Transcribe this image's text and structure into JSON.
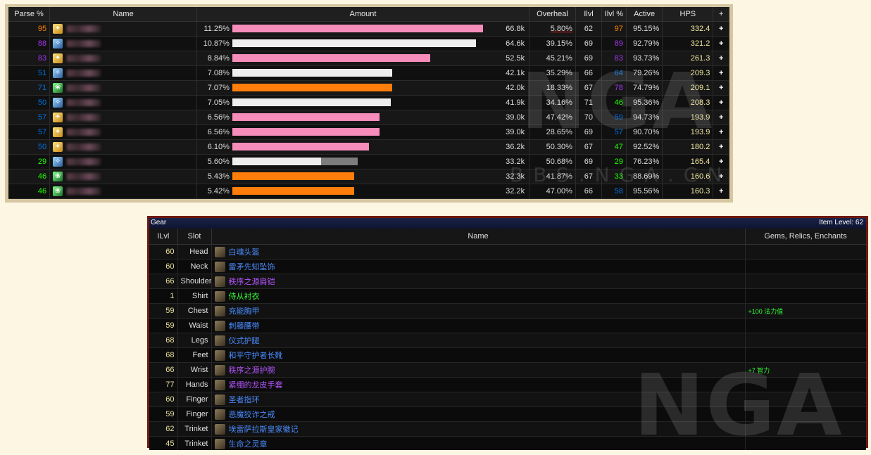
{
  "ranking": {
    "headers": [
      "Parse %",
      "Name",
      "Amount",
      "Overheal",
      "Ilvl",
      "Ilvl %",
      "Active",
      "HPS",
      "+"
    ],
    "rows": [
      {
        "parse": "95",
        "parse_color": "#ff8000",
        "spec": "holy-paladin-icon",
        "pct": "11.25%",
        "bar_pct": 99,
        "overheal_pct": 0,
        "bar_color": "#f58cba",
        "amount": "66.8k",
        "overheal": "5.80%",
        "ilvl": "62",
        "ilvl_pct": "97",
        "ilvl_pct_color": "#ff8000",
        "active": "95.15%",
        "hps": "332.4",
        "plus": "+"
      },
      {
        "parse": "88",
        "parse_color": "#a335ee",
        "spec": "holy-priest-icon",
        "pct": "10.87%",
        "bar_pct": 96,
        "overheal_pct": 0,
        "bar_color": "#eeeeee",
        "amount": "64.6k",
        "overheal": "39.15%",
        "ilvl": "69",
        "ilvl_pct": "89",
        "ilvl_pct_color": "#a335ee",
        "active": "92.79%",
        "hps": "321.2",
        "plus": "+"
      },
      {
        "parse": "83",
        "parse_color": "#a335ee",
        "spec": "holy-paladin-icon",
        "pct": "8.84%",
        "bar_pct": 78,
        "overheal_pct": 0,
        "bar_color": "#f58cba",
        "amount": "52.5k",
        "overheal": "45.21%",
        "ilvl": "69",
        "ilvl_pct": "83",
        "ilvl_pct_color": "#a335ee",
        "active": "93.73%",
        "hps": "261.3",
        "plus": "+"
      },
      {
        "parse": "51",
        "parse_color": "#0070dd",
        "spec": "holy-priest-icon",
        "pct": "7.08%",
        "bar_pct": 63,
        "overheal_pct": 0,
        "bar_color": "#eeeeee",
        "amount": "42.1k",
        "overheal": "35.29%",
        "ilvl": "66",
        "ilvl_pct": "64",
        "ilvl_pct_color": "#0070dd",
        "active": "79.26%",
        "hps": "209.3",
        "plus": "+"
      },
      {
        "parse": "71",
        "parse_color": "#0070dd",
        "spec": "restoration-druid-icon",
        "pct": "7.07%",
        "bar_pct": 63,
        "overheal_pct": 0,
        "bar_color": "#ff7d0a",
        "amount": "42.0k",
        "overheal": "18.33%",
        "ilvl": "67",
        "ilvl_pct": "78",
        "ilvl_pct_color": "#a335ee",
        "active": "74.79%",
        "hps": "209.1",
        "plus": "+"
      },
      {
        "parse": "50",
        "parse_color": "#0070dd",
        "spec": "holy-priest-icon",
        "pct": "7.05%",
        "bar_pct": 62.5,
        "overheal_pct": 0,
        "bar_color": "#eeeeee",
        "amount": "41.9k",
        "overheal": "34.16%",
        "ilvl": "71",
        "ilvl_pct": "46",
        "ilvl_pct_color": "#1eff00",
        "active": "95.36%",
        "hps": "208.3",
        "plus": "+"
      },
      {
        "parse": "57",
        "parse_color": "#0070dd",
        "spec": "holy-paladin-icon",
        "pct": "6.56%",
        "bar_pct": 58,
        "overheal_pct": 0,
        "bar_color": "#f58cba",
        "amount": "39.0k",
        "overheal": "47.42%",
        "ilvl": "70",
        "ilvl_pct": "59",
        "ilvl_pct_color": "#0070dd",
        "active": "94.73%",
        "hps": "193.9",
        "plus": "+"
      },
      {
        "parse": "57",
        "parse_color": "#0070dd",
        "spec": "holy-paladin-icon",
        "pct": "6.56%",
        "bar_pct": 58,
        "overheal_pct": 0,
        "bar_color": "#f58cba",
        "amount": "39.0k",
        "overheal": "28.65%",
        "ilvl": "69",
        "ilvl_pct": "57",
        "ilvl_pct_color": "#0070dd",
        "active": "90.70%",
        "hps": "193.9",
        "plus": "+"
      },
      {
        "parse": "50",
        "parse_color": "#0070dd",
        "spec": "holy-paladin-icon",
        "pct": "6.10%",
        "bar_pct": 54,
        "overheal_pct": 0,
        "bar_color": "#f58cba",
        "amount": "36.2k",
        "overheal": "50.30%",
        "ilvl": "67",
        "ilvl_pct": "47",
        "ilvl_pct_color": "#1eff00",
        "active": "92.52%",
        "hps": "180.2",
        "plus": "+"
      },
      {
        "parse": "29",
        "parse_color": "#1eff00",
        "spec": "holy-priest-icon",
        "pct": "5.60%",
        "bar_pct": 35,
        "overheal_pct": 14.5,
        "bar_color": "#eeeeee",
        "amount": "33.2k",
        "overheal": "50.68%",
        "ilvl": "69",
        "ilvl_pct": "29",
        "ilvl_pct_color": "#1eff00",
        "active": "76.23%",
        "hps": "165.4",
        "plus": "+"
      },
      {
        "parse": "46",
        "parse_color": "#1eff00",
        "spec": "restoration-druid-icon",
        "pct": "5.43%",
        "bar_pct": 48,
        "overheal_pct": 0,
        "bar_color": "#ff7d0a",
        "amount": "32.3k",
        "overheal": "41.87%",
        "ilvl": "67",
        "ilvl_pct": "33",
        "ilvl_pct_color": "#1eff00",
        "active": "88.69%",
        "hps": "160.6",
        "plus": "+"
      },
      {
        "parse": "46",
        "parse_color": "#1eff00",
        "spec": "restoration-druid-icon",
        "pct": "5.42%",
        "bar_pct": 48,
        "overheal_pct": 0,
        "bar_color": "#ff7d0a",
        "amount": "32.2k",
        "overheal": "47.00%",
        "ilvl": "66",
        "ilvl_pct": "58",
        "ilvl_pct_color": "#0070dd",
        "active": "95.56%",
        "hps": "160.3",
        "plus": "+"
      }
    ]
  },
  "watermark": {
    "big": "NGA",
    "small": "BBS.NGA.CN"
  },
  "gear": {
    "title": "Gear",
    "item_level": "Item Level: 62",
    "headers": [
      "ILvl",
      "Slot",
      "Name",
      "Gems, Relics, Enchants"
    ],
    "rows": [
      {
        "ilvl": "60",
        "slot": "Head",
        "name": "白魂头盔",
        "color": "#4a8cff",
        "ench": ""
      },
      {
        "ilvl": "60",
        "slot": "Neck",
        "name": "雷矛先知坠饰",
        "color": "#4a8cff",
        "ench": ""
      },
      {
        "ilvl": "66",
        "slot": "Shoulder",
        "name": "秩序之源肩铠",
        "color": "#b455ff",
        "ench": ""
      },
      {
        "ilvl": "1",
        "slot": "Shirt",
        "name": "侍从衬衣",
        "color": "#33ff33",
        "ench": ""
      },
      {
        "ilvl": "59",
        "slot": "Chest",
        "name": "充能胸甲",
        "color": "#4a8cff",
        "ench": "+100 法力值"
      },
      {
        "ilvl": "59",
        "slot": "Waist",
        "name": "刺藤腰带",
        "color": "#4a8cff",
        "ench": ""
      },
      {
        "ilvl": "68",
        "slot": "Legs",
        "name": "仪式护腿",
        "color": "#4a8cff",
        "ench": ""
      },
      {
        "ilvl": "68",
        "slot": "Feet",
        "name": "和平守护者长靴",
        "color": "#4a8cff",
        "ench": ""
      },
      {
        "ilvl": "66",
        "slot": "Wrist",
        "name": "秩序之源护腕",
        "color": "#b455ff",
        "ench": "+7 智力"
      },
      {
        "ilvl": "77",
        "slot": "Hands",
        "name": "紧绷的龙皮手套",
        "color": "#b455ff",
        "ench": ""
      },
      {
        "ilvl": "60",
        "slot": "Finger",
        "name": "圣者指环",
        "color": "#4a8cff",
        "ench": ""
      },
      {
        "ilvl": "59",
        "slot": "Finger",
        "name": "恶魔狡诈之戒",
        "color": "#4a8cff",
        "ench": ""
      },
      {
        "ilvl": "62",
        "slot": "Trinket",
        "name": "埃雷萨拉斯皇家徽记",
        "color": "#4a8cff",
        "ench": ""
      },
      {
        "ilvl": "45",
        "slot": "Trinket",
        "name": "生命之灵章",
        "color": "#4a8cff",
        "ench": ""
      }
    ]
  }
}
